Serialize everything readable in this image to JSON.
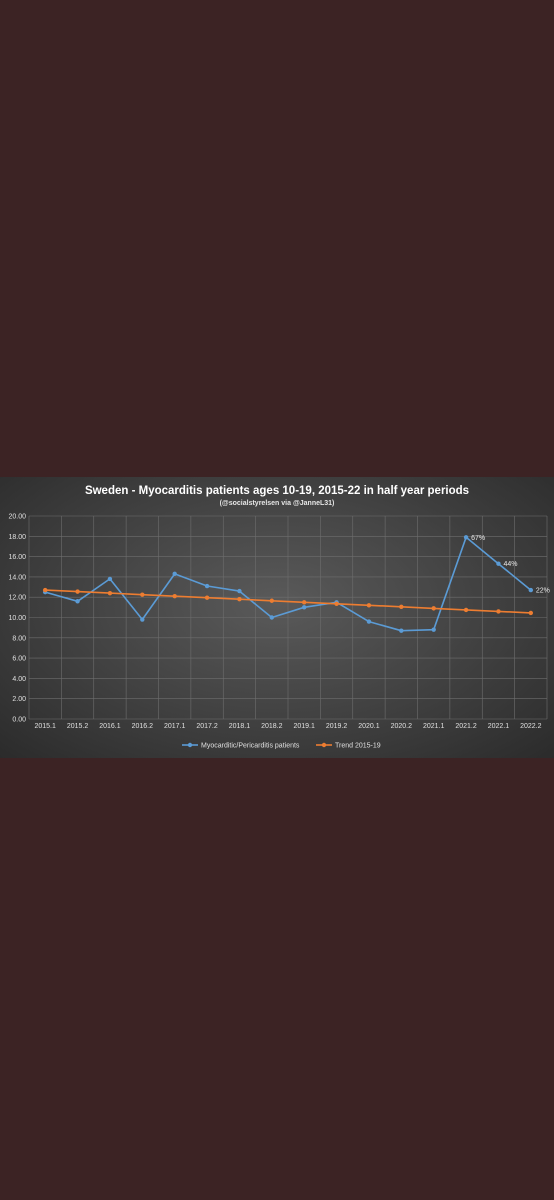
{
  "chart_data": {
    "type": "line",
    "title": "Sweden - Myocarditis patients ages 10-19, 2015-22 in half year periods",
    "subtitle": "(@socialstyrelsen via @JanneL31)",
    "categories": [
      "2015.1",
      "2015.2",
      "2016.1",
      "2016.2",
      "2017.1",
      "2017.2",
      "2018.1",
      "2018.2",
      "2019.1",
      "2019.2",
      "2020.1",
      "2020.2",
      "2021.1",
      "2021.2",
      "2022.1",
      "2022.2"
    ],
    "series": [
      {
        "name": "Myocarditic/Pericarditis patients",
        "color": "#5b9bd5",
        "values": [
          12.5,
          11.6,
          13.8,
          9.8,
          14.3,
          13.1,
          12.6,
          10.0,
          11.0,
          11.5,
          9.6,
          8.7,
          8.8,
          17.9,
          15.3,
          12.7
        ]
      },
      {
        "name": "Trend 2015-19",
        "color": "#ed7d31",
        "values": [
          12.7,
          12.55,
          12.4,
          12.25,
          12.1,
          11.95,
          11.8,
          11.65,
          11.5,
          11.35,
          11.2,
          11.05,
          10.9,
          10.75,
          10.6,
          10.45
        ]
      }
    ],
    "annotations": [
      {
        "category": "2021.2",
        "text": "67%"
      },
      {
        "category": "2022.1",
        "text": "44%"
      },
      {
        "category": "2022.2",
        "text": "22%"
      }
    ],
    "yticks": [
      "0.00",
      "2.00",
      "4.00",
      "6.00",
      "8.00",
      "10.00",
      "12.00",
      "14.00",
      "16.00",
      "18.00",
      "20.00"
    ],
    "ylim": [
      0,
      20
    ],
    "xlabel": "",
    "ylabel": "",
    "grid": true,
    "legend": "bottom"
  }
}
